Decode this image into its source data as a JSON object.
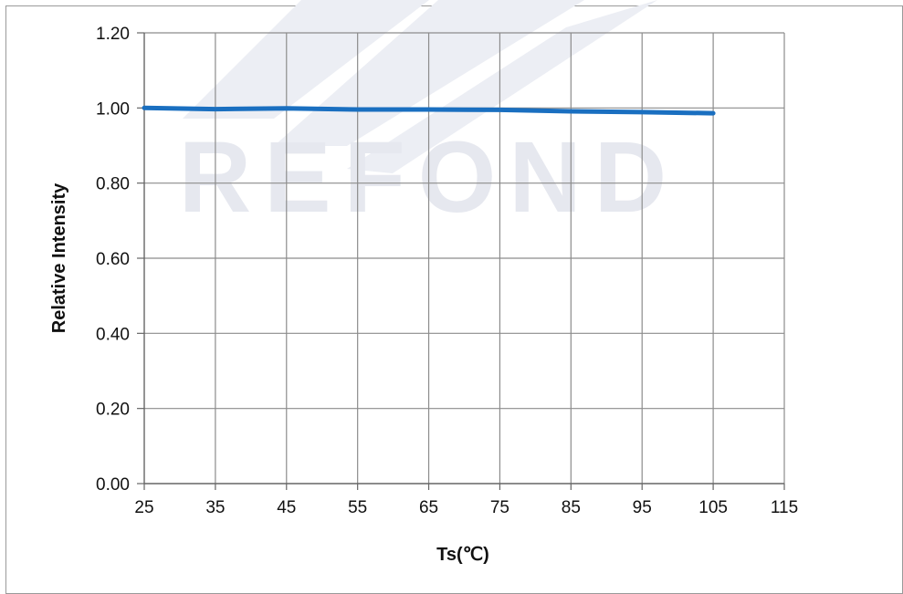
{
  "watermark": {
    "text": "REFOND"
  },
  "chart_data": {
    "type": "line",
    "title": "",
    "xlabel": "Ts(℃)",
    "ylabel": "Relative Intensity",
    "xlim": [
      25,
      115
    ],
    "ylim": [
      0,
      1.2
    ],
    "x_ticks": [
      "25",
      "35",
      "45",
      "55",
      "65",
      "75",
      "85",
      "95",
      "105",
      "115"
    ],
    "y_ticks": [
      "0.00",
      "0.20",
      "0.40",
      "0.60",
      "0.80",
      "1.00",
      "1.20"
    ],
    "grid": true,
    "legend": "none",
    "series": [
      {
        "color": "#1a6fc0",
        "x": [
          25,
          35,
          45,
          55,
          65,
          75,
          85,
          95,
          105
        ],
        "y": [
          1.0,
          0.997,
          0.999,
          0.996,
          0.996,
          0.995,
          0.991,
          0.989,
          0.986
        ]
      }
    ],
    "colors": {
      "grid": "#8c8c8c",
      "axis": "#666666",
      "frame": "#9a9a9a",
      "watermark": "#e6e8ef"
    }
  }
}
